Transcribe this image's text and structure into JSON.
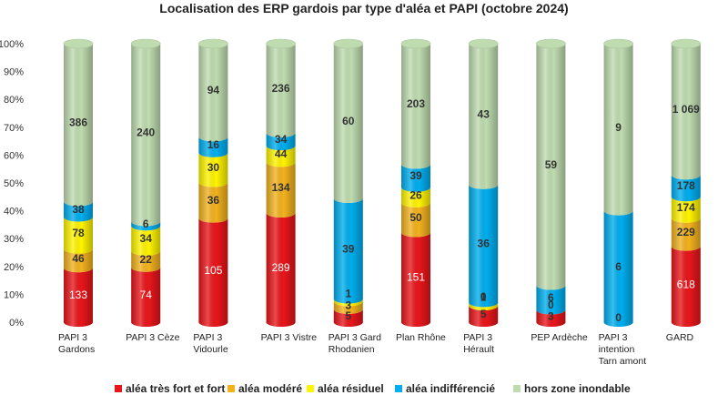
{
  "chart_data": {
    "type": "bar",
    "stacked": "percent",
    "title": "Localisation des ERP gardois par type d'aléa et PAPI (octobre 2024)",
    "xlabel": "",
    "ylabel": "",
    "ylim": [
      0,
      100
    ],
    "yticks": [
      "0%",
      "10%",
      "20%",
      "30%",
      "40%",
      "50%",
      "60%",
      "70%",
      "80%",
      "90%",
      "100%"
    ],
    "grid": false,
    "legend": "bottom",
    "categories": [
      [
        "PAPI 3",
        "Gardons"
      ],
      [
        "PAPI 3 Cèze"
      ],
      [
        "PAPI 3",
        "Vidourle"
      ],
      [
        "PAPI 3 Vistre"
      ],
      [
        "PAPI 3 Gard",
        "Rhodanien"
      ],
      [
        "Plan Rhône"
      ],
      [
        "PAPI 3",
        "Hérault"
      ],
      [
        "PEP Ardèche"
      ],
      [
        "PAPI 3",
        "intention",
        "Tarn amont"
      ],
      [
        "GARD"
      ]
    ],
    "series": [
      {
        "name": "aléa très fort et fort",
        "color": "#e8161b",
        "values": [
          133,
          74,
          105,
          289,
          5,
          151,
          5,
          3,
          0,
          618
        ],
        "labels": [
          "133",
          "74",
          "105",
          "289",
          "5",
          "151",
          "5",
          "3",
          "",
          "618"
        ]
      },
      {
        "name": "aléa modéré",
        "color": "#f2b21e",
        "values": [
          46,
          22,
          36,
          134,
          3,
          50,
          0,
          0,
          0,
          229
        ],
        "labels": [
          "46",
          "22",
          "36",
          "134",
          "3",
          "50",
          "",
          "",
          "",
          "229"
        ]
      },
      {
        "name": "aléa résiduel",
        "color": "#fff400",
        "values": [
          78,
          34,
          30,
          44,
          1,
          26,
          1,
          0,
          0,
          174
        ],
        "labels": [
          "78",
          "34",
          "30",
          "44",
          "1",
          "26",
          "1",
          "",
          "",
          "174"
        ]
      },
      {
        "name": "aléa indifférencié",
        "color": "#00aeef",
        "values": [
          38,
          6,
          16,
          34,
          39,
          39,
          36,
          6,
          6,
          178
        ],
        "labels": [
          "38",
          "6",
          "16",
          "34",
          "39",
          "39",
          "36",
          "6",
          "6",
          "178"
        ]
      },
      {
        "name": "hors zone inondable",
        "color": "#bfdcb0",
        "values": [
          386,
          240,
          94,
          236,
          60,
          203,
          43,
          59,
          9,
          1069
        ],
        "labels": [
          "386",
          "240",
          "94",
          "236",
          "60",
          "203",
          "43",
          "59",
          "9",
          "1 069"
        ]
      }
    ],
    "extra_labels": [
      {
        "category": 8,
        "series": 0,
        "text": "0"
      },
      {
        "category": 6,
        "series": 1,
        "text": "0"
      },
      {
        "category": 7,
        "series": 1,
        "text": "0"
      }
    ]
  }
}
